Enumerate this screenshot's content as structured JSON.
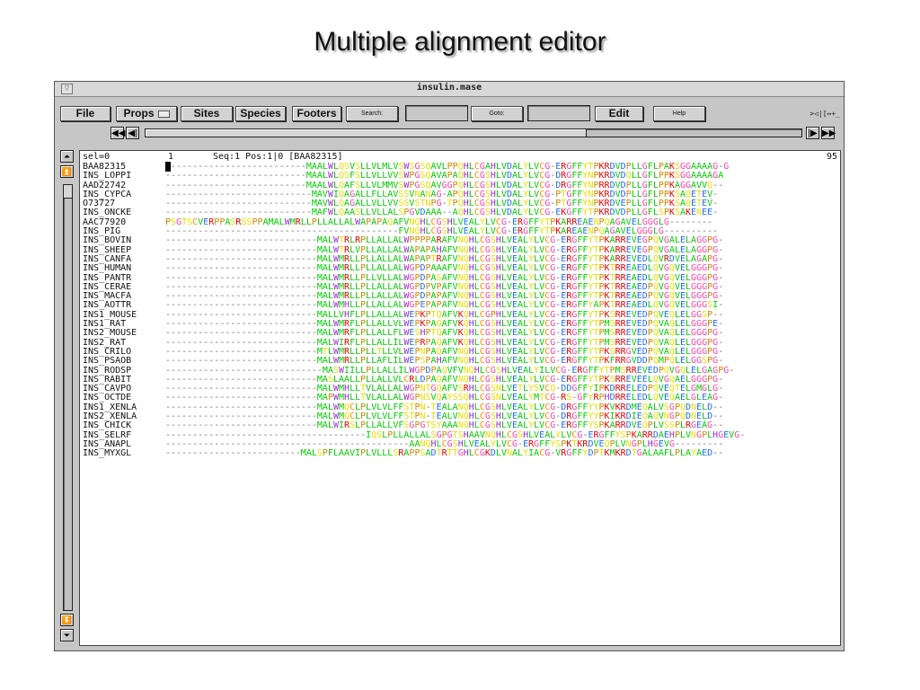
{
  "slide": {
    "title": "Multiple alignment editor"
  },
  "window": {
    "title": "insulin.mase",
    "menu_glyph": "▽",
    "controls": ">◁|[↔+_"
  },
  "toolbar": {
    "file": "File",
    "props": "Props",
    "sites": "Sites",
    "species": "Species",
    "footers": "Footers",
    "search_label": "Search:",
    "search_value": "",
    "goto_label": "Goto:",
    "goto_value": "",
    "edit": "Edit",
    "help": "Help"
  },
  "status": {
    "sel": "sel=0",
    "pos_num": "1",
    "info": "Seq:1 Pos:1|0 [BAA82315]",
    "end": "95"
  },
  "colors": {
    "hydrophobic": "#00cc00",
    "polar": "#e8e000",
    "basic": "#ee0000",
    "acidic": "#1e6cff",
    "cys": "#ff8c00",
    "gly": "#ff44aa",
    "his_trp": "#9933cc",
    "pro": "#cc8800",
    "gap": "#7a7a7a"
  },
  "sequences": [
    {
      "name": "BAA82315",
      "seq": "#-------------------------MAALWLQSVSLLVLMLVSWSGSQAVLPPQHLCGAHLVDALYLVCG-ERGFFYTPKRDVDPLLGFLPAKSGGAAAAG-G"
    },
    {
      "name": "INS_LOPPI",
      "seq": "--------------------------MAALWLQSFSLLVLLVVSWPGSQAVAPAQHLCGSHLVDALYLVCG-DRGFFYNPKRDVDQLLGFLPPKSGGAAAAGA"
    },
    {
      "name": "AAD22742",
      "seq": "--------------------------MAALWLQAFSLLVLMMVSWPGSQAVGGPQHLCGSHLVDALYLVCG-DRGFFYNPRRDVDPLLGFLPPKAGGAVVQ--"
    },
    {
      "name": "INS_CYPCA",
      "seq": "---------------------------MAVWIQAGALLFLLAVSSVNANAG-APQHLCGSHLVDALYLVCG-PTGFFYNPKRDVDPLLGFLPPKSAQETEV-"
    },
    {
      "name": "O73727",
      "seq": "---------------------------MAVWLQAGALLVLLVVSSVSTNPG-TPQHLCGSHLVDALYLVCG-PTGFFYNPKRDVEPLLGFLPPKSAQETEV-"
    },
    {
      "name": "INS_ONCKE",
      "seq": "---------------------------MAFWLQAASLLVLLALSPGVDAAA--AQHLCGSHLVDALYLVCG-EKGFFYTPKRDVDPLLGFLSPKSAKENEE-"
    },
    {
      "name": "AAC77920",
      "seq": "PSGTSCVERPPASRSSPPAMALWMRLLPLLALLALWAPAPAQAFVNQHLCGSHLVEALYLVCG-ERGFFYTPKARREAENPQAGAVELGGGLG--------"
    },
    {
      "name": "INS_PIG",
      "seq": "-------------------------------------------FVNQHLCGSHLVEALYLVCG-ERGFFYTPKAREAENPQAGAVELGGGLG----------"
    },
    {
      "name": "INS_BOVIN",
      "seq": "----------------------------MALWTRLRPLLALLALWPPPPARAFVNQHLCGSHLVEALYLVCG-ERGFFYTPKARREVEGPQVGALELAGGPG-"
    },
    {
      "name": "INS_SHEEP",
      "seq": "----------------------------MALWTRLVPLLALLALWAPAPAHAFVNQHLCGSHLVEALYLVCG-ERGFFYTPKARREVEGPQVGALELAGGPG-"
    },
    {
      "name": "INS_CANFA",
      "seq": "----------------------------MALWMRLLPLLALLALWAPAPTRAFVNQHLCGSHLVEALYLVCG-ERGFFYTPKARREVEDLQVRDVELAGAPG-"
    },
    {
      "name": "INS_HUMAN",
      "seq": "----------------------------MALWMRLLPLLALLALWGPDPAAAFVNQHLCGSHLVEALYLVCG-ERGFFYTPKTRREAEDLQVGQVELGGGPG-"
    },
    {
      "name": "INS_PANTR",
      "seq": "----------------------------MALWMRLLPLLVLLALWGPDPASAFVNQHLCGSHLVEALYLVCG-ERGFFYTPKTRREAEDLQVGQVELGGGPG-"
    },
    {
      "name": "INS_CERAE",
      "seq": "----------------------------MALWMRLLPLLALLALWGPDPVPAFVNQHLCGSHLVEALYLVCG-ERGFFYTPKTRREAEDPQVGQVELGGGPG-"
    },
    {
      "name": "INS_MACFA",
      "seq": "----------------------------MALWMRLLPLLALLALWGPDPAPAFVNQHLCGSHLVEALYLVCG-ERGFFYTPKTRREAEDPQVGQVELGGGPG-"
    },
    {
      "name": "INS_AOTTR",
      "seq": "----------------------------MALWMHLLPLLALLALWGPEPAPAFVNQHLCGSHLVEALYLVCG-ERGFFYAPKTRREAEDLQVGQVELGGGSI-"
    },
    {
      "name": "INS1_MOUSE",
      "seq": "----------------------------MALLVHFLPLLALLALWEPKPTQAFVKQHLCGPHLVEALYLVCG-ERGFFYTPKSRREVEDPQVEQLELGGSP--"
    },
    {
      "name": "INS1_RAT",
      "seq": "----------------------------MALWMRFLPLLALLVLWEPKPAQAFVKQHLCGSHLVEALYLVCG-ERGFFYTPMSRREVEDPQVAQLELGGGPE-"
    },
    {
      "name": "INS2_MOUSE",
      "seq": "----------------------------MALWMRFLPLLALLFLWESHPTQAFVKQHLCGSHLVEALYLVCG-ERGFFYTPMSRREVEDPQVAQLELGGGPG-"
    },
    {
      "name": "INS2_RAT",
      "seq": "----------------------------MALWIRFLPLLALLILWEPRPAQAFVKQHLCGSHLVEALYLVCG-ERGFFYTPMSRREVEDPQVAQLELGGGPG-"
    },
    {
      "name": "INS_CRILO",
      "seq": "----------------------------MTLWMRLLPLLTLLVLWEPNPAQAFVNQHLCGSHLVEALYLVCG-ERGFFYTPKSRRGVEDPQVAQLELGGGPG-"
    },
    {
      "name": "INS_PSAOB",
      "seq": "----------------------------MALWMRLLPLLAFLILWEPSPAHAFVNQHLCGSHLVEALYLVCG-ERGFFYTPKFRRGVDDPQMPQLELGGSPG-"
    },
    {
      "name": "INS_RODSP",
      "seq": "-----------------------------MASWIILLPLLALLILWGPDPAQVFVNQHLCGSHLVEALYILVCG-ERGFFYTPMSRREVEDPQVGQLELGAGPG-"
    },
    {
      "name": "INS_RABIT",
      "seq": "----------------------------MASLAALLPLLALLVLCRLDPAQAFVNQHLCGSHLVEALYLVCG-ERGFFYTPKSRREVEELQVGQAELGGGPG-"
    },
    {
      "name": "INS_CAVPO",
      "seq": "----------------------------MALWMHLLTVLALLALWGPNTGQAFVSRHLCGSNLVETLYSVCQ-DDGFFYIPKDRRELEDPQVEQTELGMGLG-"
    },
    {
      "name": "INS_OCTDE",
      "seq": "----------------------------MAPWMHLLTVLALLALWGPNSVQAYSSQHLCGSNLVEALYMTCG-RS-GFYRPHDRRELEDLQVEQAELGLEAG-"
    },
    {
      "name": "INS1_XENLA",
      "seq": "----------------------------MALWMQCLPLVLVLFFSTPN-TEALANQHLCGSHLVEALYLVCG-DRGFFYYPKVKRDMEQALVSGPQDNELD--"
    },
    {
      "name": "INS2_XENLA",
      "seq": "----------------------------MALWMQCLPLVLVLFFSTPN-TEALVNQHLCGSHLVEALYLVCG-DRGFFYYPKIKRDIEQAQVNGPQDNELD--"
    },
    {
      "name": "INS_CHICK",
      "seq": "----------------------------MALWIRSLPLLALLVFSGPGTSYAAANQHLCGSHLVEALYLVCG-ERGFFYSPKARRDVEQPLVSSPLRGEAG--"
    },
    {
      "name": "INS_SELRF",
      "seq": "-------------------------------------IQSLPLLALLALSGPGTSHAAVNQHLCGSHLVEALYLVCG-ERGFFYSPKARRDAEHPLVNGPLHGEVG-"
    },
    {
      "name": "INS_ANAPL",
      "seq": "---------------------------------------------AANQHLCGSHLVEALYLVCG-ERGFFYSPKTKRDVEQPLVNGPLHGEVG---------"
    },
    {
      "name": "INS_MYXGL",
      "seq": "-------------------------MALSPFLAAVIPLVLLLSRAPPSADTRTTGHLCGKDLVNALYIACG-VRGFFYDPTKMKRDTGALAAFLPLAYAED--"
    }
  ]
}
